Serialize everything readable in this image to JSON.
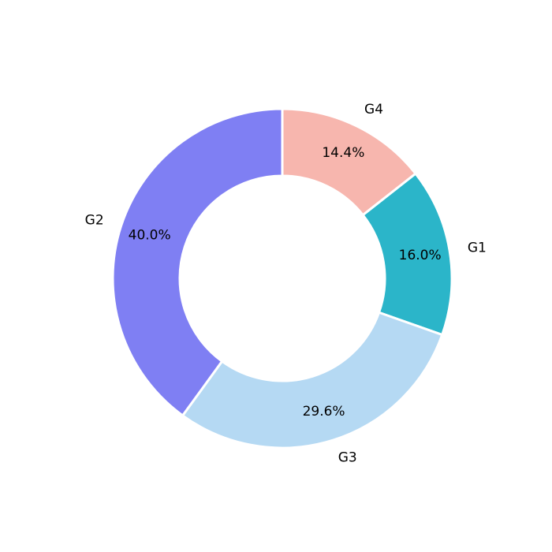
{
  "chart_data": {
    "type": "donut",
    "categories": [
      "G4",
      "G1",
      "G3",
      "G2"
    ],
    "values": [
      14.4,
      16.0,
      29.6,
      40.0
    ],
    "value_labels": [
      "14.4%",
      "16.0%",
      "29.6%",
      "40.0%"
    ],
    "colors": [
      "#f7b6ae",
      "#2bb5c9",
      "#b5d9f3",
      "#7f7ff3"
    ]
  }
}
